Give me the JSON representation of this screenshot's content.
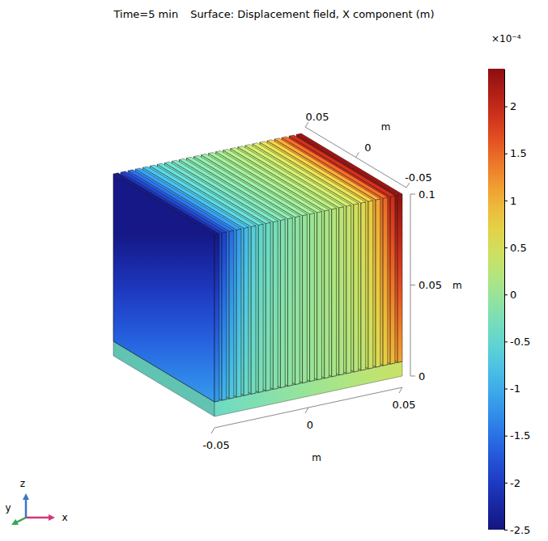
{
  "chart_data": {
    "type": "surface",
    "title": "Time=5 min",
    "subtitle": "Surface: Displacement field, X component (m)",
    "xlabel": "m",
    "ylabel": "m",
    "zlabel": "m",
    "xlim": [
      -0.05,
      0.05
    ],
    "xticks": [
      -0.05,
      0,
      0.05
    ],
    "ylim": [
      -0.05,
      0.05
    ],
    "yticks": [
      -0.05,
      0,
      0.05
    ],
    "zlim": [
      0,
      0.1
    ],
    "zticks": [
      0,
      0.05,
      0.1
    ],
    "fins": {
      "x": [
        -0.05,
        -0.0461,
        -0.0422,
        -0.0383,
        -0.0344,
        -0.0305,
        -0.0266,
        -0.0227,
        -0.0188,
        -0.0149,
        -0.011,
        -0.0071,
        -0.0032,
        0.0007,
        0.0046,
        0.0085,
        0.0124,
        0.0163,
        0.0202,
        0.0241,
        0.028,
        0.0319,
        0.0358,
        0.0397,
        0.0436,
        0.0475
      ],
      "bottom": [
        -1.15,
        -0.9,
        -0.7,
        -0.55,
        -0.42,
        -0.32,
        -0.25,
        -0.2,
        -0.15,
        -0.11,
        -0.07,
        -0.05,
        -0.02,
        0.01,
        0.04,
        0.07,
        0.1,
        0.13,
        0.17,
        0.22,
        0.28,
        0.38,
        0.52,
        0.7,
        0.9,
        1.1
      ],
      "top": [
        -2.45,
        -1.95,
        -1.55,
        -1.2,
        -0.9,
        -0.65,
        -0.5,
        -0.4,
        -0.3,
        -0.22,
        -0.15,
        -0.1,
        -0.04,
        0.02,
        0.08,
        0.14,
        0.2,
        0.27,
        0.35,
        0.45,
        0.58,
        0.8,
        1.1,
        1.5,
        1.95,
        2.35
      ]
    },
    "base": {
      "values": [
        -0.4,
        0.4
      ]
    },
    "colorbar": {
      "label": "×10⁻⁴",
      "range": [
        -2.5,
        2.4
      ],
      "ticks": [
        -2.5,
        -2,
        -1.5,
        -1,
        -0.5,
        0,
        0.5,
        1,
        1.5,
        2
      ]
    },
    "triad_labels": [
      "x",
      "y",
      "z"
    ]
  }
}
